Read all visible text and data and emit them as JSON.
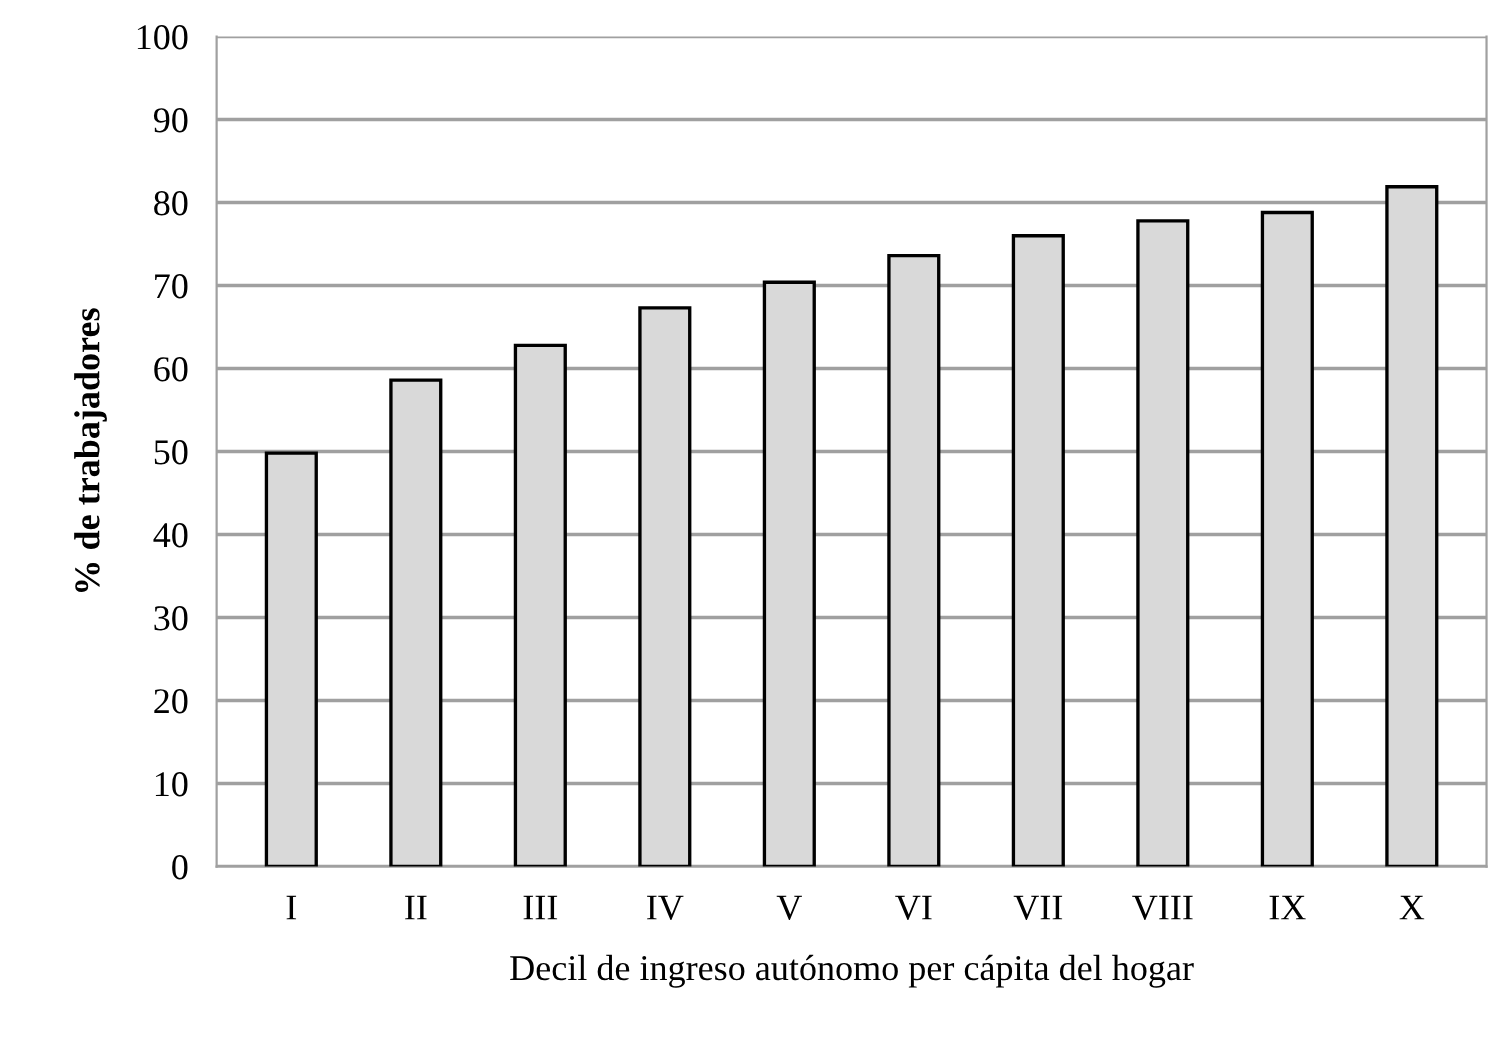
{
  "chart_data": {
    "type": "bar",
    "xlabel": "Decil de ingreso autónomo per cápita del hogar",
    "ylabel": "% de trabajadores",
    "categories": [
      "I",
      "II",
      "III",
      "IV",
      "V",
      "VI",
      "VII",
      "VIII",
      "IX",
      "X"
    ],
    "values": [
      49.8,
      58.6,
      62.8,
      67.3,
      70.4,
      73.6,
      76.0,
      77.8,
      78.8,
      81.9
    ],
    "color": "#d9d9d9",
    "ylim": [
      0,
      100
    ],
    "yticks": [
      0,
      10,
      20,
      30,
      40,
      50,
      60,
      70,
      80,
      90,
      100
    ],
    "grid": "y"
  }
}
